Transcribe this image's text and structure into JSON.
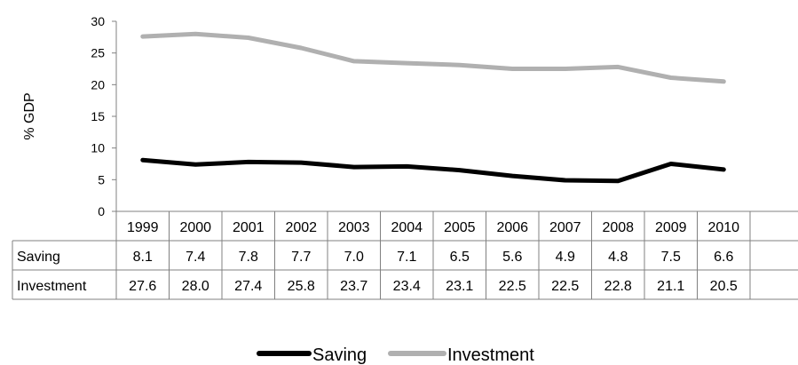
{
  "chart_data": {
    "type": "line",
    "title": "",
    "xlabel": "",
    "ylabel": "% GDP",
    "ylim": [
      0,
      30
    ],
    "yticks": [
      0,
      5,
      10,
      15,
      20,
      25,
      30
    ],
    "grid": false,
    "legend": "bottom",
    "categories": [
      "1999",
      "2000",
      "2001",
      "2002",
      "2003",
      "2004",
      "2005",
      "2006",
      "2007",
      "2008",
      "2009",
      "2010"
    ],
    "series": [
      {
        "name": "Saving",
        "color": "#000000",
        "values": [
          8.1,
          7.4,
          7.8,
          7.7,
          7.0,
          7.1,
          6.5,
          5.6,
          4.9,
          4.8,
          7.5,
          6.6
        ],
        "labels": [
          "8.1",
          "7.4",
          "7.8",
          "7.7",
          "7.0",
          "7.1",
          "6.5",
          "5.6",
          "4.9",
          "4.8",
          "7.5",
          "6.6"
        ]
      },
      {
        "name": "Investment",
        "color": "#b0b0b0",
        "values": [
          27.6,
          28.0,
          27.4,
          25.8,
          23.7,
          23.4,
          23.1,
          22.5,
          22.5,
          22.8,
          21.1,
          20.5
        ],
        "labels": [
          "27.6",
          "28.0",
          "27.4",
          "25.8",
          "23.7",
          "23.4",
          "23.1",
          "22.5",
          "22.5",
          "22.8",
          "21.1",
          "20.5"
        ]
      }
    ]
  }
}
